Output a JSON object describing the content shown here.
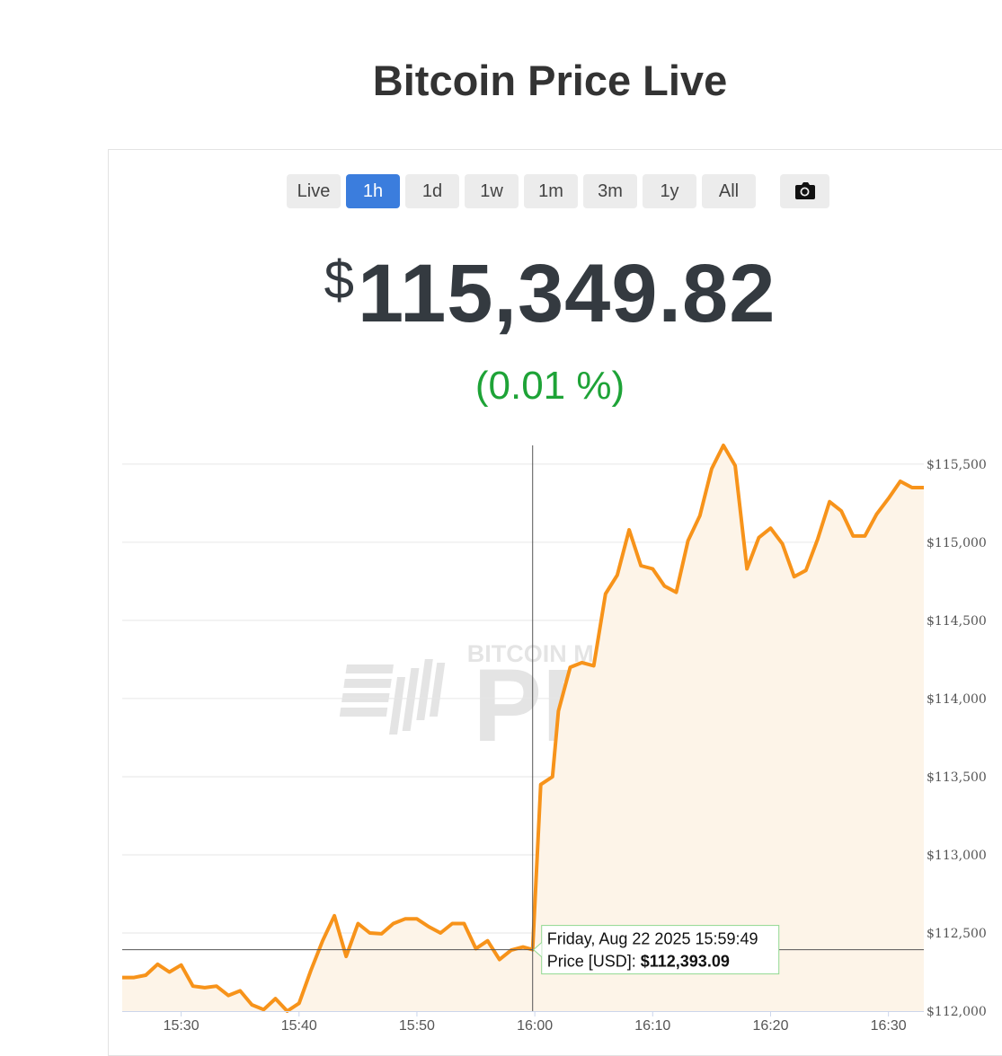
{
  "page": {
    "title": "Bitcoin Price Live"
  },
  "toolbar": {
    "ranges": [
      "Live",
      "1h",
      "1d",
      "1w",
      "1m",
      "3m",
      "1y",
      "All"
    ],
    "active": "1h",
    "screenshot_icon": "camera-icon"
  },
  "price": {
    "symbol": "$",
    "value": "115,349.82",
    "change": "(0.01 %)"
  },
  "colors": {
    "line": "#f7931a",
    "area": "#fdf4e8",
    "active_button": "#3b7ddd",
    "positive": "#1ea337",
    "tooltip_border": "#90d890"
  },
  "watermark": {
    "top": "BITCOIN MAGAZINE",
    "main": "PRO"
  },
  "tooltip": {
    "date": "Friday, Aug 22 2025 15:59:49",
    "label": "Price [USD]: ",
    "value": "$112,393.09"
  },
  "chart_data": {
    "type": "area",
    "x_unit": "time (HH:MM, Aug 22 2025)",
    "ylim": [
      112000,
      115620
    ],
    "xlim": [
      "15:25",
      "16:33"
    ],
    "x_ticks": [
      "15:30",
      "15:40",
      "15:50",
      "16:00",
      "16:10",
      "16:20",
      "16:30"
    ],
    "y_ticks": [
      112000,
      112500,
      113000,
      113500,
      114000,
      114500,
      115000,
      115500
    ],
    "y_tick_labels": [
      "$112,000",
      "$112,500",
      "$113,000",
      "$113,500",
      "$114,000",
      "$114,500",
      "$115,000",
      "$115,500"
    ],
    "grid": true,
    "series": [
      {
        "x": [
          "15:25:00",
          "15:26:00",
          "15:27:00",
          "15:28:00",
          "15:29:00",
          "15:30:00",
          "15:31:00",
          "15:32:00",
          "15:33:00",
          "15:34:00",
          "15:35:00",
          "15:36:00",
          "15:37:00",
          "15:38:00",
          "15:39:00",
          "15:40:00",
          "15:41:00",
          "15:42:00",
          "15:43:00",
          "15:44:00",
          "15:45:00",
          "15:46:00",
          "15:47:00",
          "15:48:00",
          "15:49:00",
          "15:50:00",
          "15:51:00",
          "15:52:00",
          "15:53:00",
          "15:54:00",
          "15:55:00",
          "15:56:00",
          "15:57:00",
          "15:58:00",
          "15:59:00",
          "15:59:49",
          "16:00:30",
          "16:01:30",
          "16:02:00",
          "16:03:00",
          "16:04:00",
          "16:05:00",
          "16:06:00",
          "16:07:00",
          "16:08:00",
          "16:09:00",
          "16:10:00",
          "16:11:00",
          "16:12:00",
          "16:13:00",
          "16:14:00",
          "16:15:00",
          "16:16:00",
          "16:17:00",
          "16:18:00",
          "16:19:00",
          "16:20:00",
          "16:21:00",
          "16:22:00",
          "16:23:00",
          "16:24:00",
          "16:25:00",
          "16:26:00",
          "16:27:00",
          "16:28:00",
          "16:29:00",
          "16:30:00",
          "16:31:00",
          "16:32:00",
          "16:33:00"
        ],
        "y": [
          112215,
          112215,
          112230,
          112300,
          112250,
          112295,
          112160,
          112150,
          112160,
          112100,
          112130,
          112040,
          112010,
          112080,
          112000,
          112050,
          112260,
          112450,
          112610,
          112350,
          112560,
          112500,
          112495,
          112560,
          112590,
          112590,
          112540,
          112500,
          112560,
          112560,
          112400,
          112450,
          112330,
          112390,
          112410,
          112393,
          113450,
          113500,
          113920,
          114200,
          114230,
          114210,
          114670,
          114790,
          115080,
          114850,
          114830,
          114720,
          114680,
          115010,
          115170,
          115470,
          115620,
          115490,
          114830,
          115030,
          115090,
          114990,
          114780,
          114820,
          115020,
          115260,
          115200,
          115040,
          115040,
          115180,
          115280,
          115390,
          115350,
          115350
        ]
      }
    ]
  }
}
